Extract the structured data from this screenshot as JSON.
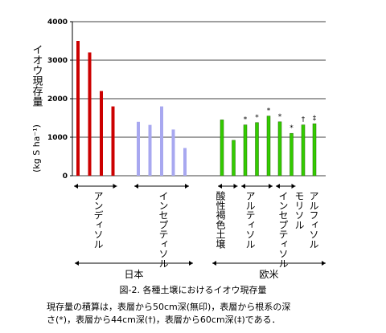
{
  "chart_data": {
    "type": "bar",
    "caption": "図-2. 各種土壌におけるイオウ現存量",
    "y_label": "イオウ現存量",
    "y_unit": "(kg S ha⁻¹)",
    "notes": [
      "現存量の積算は，表層から50cm深(無印)，表層から根系の深",
      "さ(*)，表層から44cm深(†)，表層から60cm深(‡)である．"
    ],
    "ylim": [
      0,
      4000
    ],
    "yticks": [
      0,
      1000,
      2000,
      3000,
      4000
    ],
    "grid": true,
    "regions": [
      {
        "name": "日本",
        "series": [
          {
            "name": "アンディソル",
            "color": "#cc0000",
            "values": [
              3500,
              3200,
              2200,
              1800
            ],
            "markers": [
              null,
              null,
              null,
              null
            ]
          },
          {
            "name": "インセプティソル",
            "color": "#a8a8f0",
            "values": [
              1400,
              1320,
              1800,
              1200,
              720
            ],
            "markers": [
              null,
              null,
              null,
              null,
              null
            ]
          }
        ]
      },
      {
        "name": "欧米",
        "series": [
          {
            "name": "酸性褐色土壌",
            "color": "#33cc00",
            "values": [
              1450,
              920
            ],
            "markers": [
              null,
              null
            ]
          },
          {
            "name": "アルティソル",
            "color": "#33cc00",
            "values": [
              1320,
              1380,
              1550
            ],
            "markers": [
              "*",
              "*",
              "*"
            ]
          },
          {
            "name": "インセプティソル",
            "color": "#33cc00",
            "values": [
              1400,
              1100
            ],
            "markers": [
              "*",
              "*"
            ]
          },
          {
            "name": "モリソル",
            "color": "#33cc00",
            "values": [
              1320
            ],
            "markers": [
              "†"
            ]
          },
          {
            "name": "アルフィソル",
            "color": "#33cc00",
            "values": [
              1350
            ],
            "markers": [
              "‡"
            ]
          }
        ]
      }
    ]
  }
}
